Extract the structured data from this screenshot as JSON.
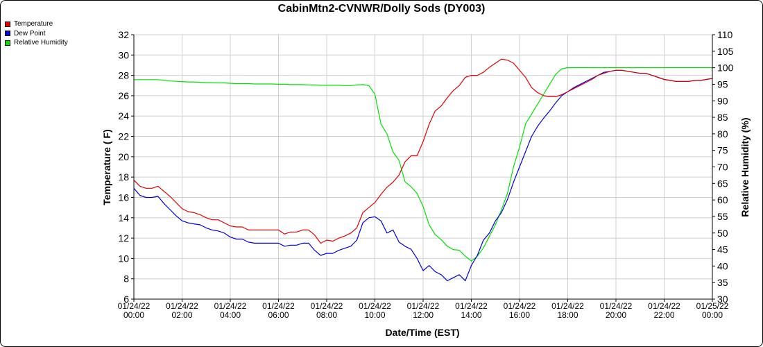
{
  "chart_data": {
    "type": "line",
    "title": "CabinMtn2-CVNWR/Dolly Sods (DY003)",
    "xlabel": "Date/Time (EST)",
    "ylabel": "Temperature ( F)",
    "y2label": "Relative Humidity (%)",
    "ylim": [
      6,
      32
    ],
    "y2lim": [
      30,
      110
    ],
    "yticks": [
      "6",
      "8",
      "10",
      "12",
      "14",
      "16",
      "18",
      "20",
      "22",
      "24",
      "26",
      "28",
      "30",
      "32"
    ],
    "y2ticks": [
      "30",
      "35",
      "40",
      "45",
      "50",
      "55",
      "60",
      "65",
      "70",
      "75",
      "80",
      "85",
      "90",
      "95",
      "100",
      "105",
      "110"
    ],
    "xticks": [
      [
        "01/24/22",
        "00:00"
      ],
      [
        "01/24/22",
        "02:00"
      ],
      [
        "01/24/22",
        "04:00"
      ],
      [
        "01/24/22",
        "06:00"
      ],
      [
        "01/24/22",
        "08:00"
      ],
      [
        "01/24/22",
        "10:00"
      ],
      [
        "01/24/22",
        "12:00"
      ],
      [
        "01/24/22",
        "14:00"
      ],
      [
        "01/24/22",
        "16:00"
      ],
      [
        "01/24/22",
        "18:00"
      ],
      [
        "01/24/22",
        "20:00"
      ],
      [
        "01/24/22",
        "22:00"
      ],
      [
        "01/25/22",
        "00:00"
      ]
    ],
    "x_hours_range": [
      0,
      24
    ],
    "grid": true,
    "legend_position": "top-left",
    "series": [
      {
        "name": "Temperature",
        "axis": "left",
        "color": "#e00000",
        "x_hours": [
          0,
          0.25,
          0.5,
          0.75,
          1,
          1.25,
          1.5,
          1.75,
          2,
          2.25,
          2.5,
          2.75,
          3,
          3.25,
          3.5,
          3.75,
          4,
          4.25,
          4.5,
          4.75,
          5,
          5.25,
          5.5,
          5.75,
          6,
          6.25,
          6.5,
          6.75,
          7,
          7.25,
          7.5,
          7.75,
          8,
          8.25,
          8.5,
          8.75,
          9,
          9.25,
          9.5,
          9.75,
          10,
          10.25,
          10.5,
          10.75,
          11,
          11.25,
          11.5,
          11.75,
          12,
          12.25,
          12.5,
          12.75,
          13,
          13.25,
          13.5,
          13.75,
          14,
          14.25,
          14.5,
          14.75,
          15,
          15.25,
          15.5,
          15.75,
          16,
          16.25,
          16.5,
          16.75,
          17,
          17.25,
          17.5,
          17.75,
          18,
          18.25,
          18.5,
          18.75,
          19,
          19.25,
          19.5,
          19.75,
          20,
          20.25,
          20.5,
          20.75,
          21,
          21.25,
          21.5,
          21.75,
          22,
          22.25,
          22.5,
          22.75,
          23,
          23.25,
          23.5,
          23.75,
          24
        ],
        "values": [
          17.7,
          17.1,
          16.9,
          16.9,
          17.1,
          16.6,
          16.1,
          15.5,
          14.9,
          14.6,
          14.5,
          14.3,
          14.0,
          13.8,
          13.8,
          13.5,
          13.2,
          13.1,
          13.1,
          12.8,
          12.8,
          12.8,
          12.8,
          12.8,
          12.8,
          12.4,
          12.6,
          12.6,
          12.8,
          12.8,
          12.3,
          11.5,
          11.8,
          11.7,
          12.0,
          12.2,
          12.5,
          13.0,
          14.5,
          15.0,
          15.5,
          16.3,
          17.0,
          17.5,
          18.2,
          19.5,
          20.1,
          20.1,
          21.5,
          23.2,
          24.5,
          25.0,
          25.8,
          26.5,
          27.0,
          27.8,
          28.0,
          28.0,
          28.3,
          28.8,
          29.2,
          29.6,
          29.5,
          29.2,
          28.5,
          27.8,
          26.8,
          26.3,
          26.0,
          25.9,
          25.9,
          26.1,
          26.4,
          26.7,
          27.0,
          27.3,
          27.6,
          28.0,
          28.2,
          28.4,
          28.5,
          28.5,
          28.4,
          28.3,
          28.2,
          28.2,
          28.0,
          27.8,
          27.6,
          27.5,
          27.4,
          27.4,
          27.4,
          27.5,
          27.5,
          27.6,
          27.7
        ]
      },
      {
        "name": "Dew Point",
        "axis": "left",
        "color": "#0000dd",
        "x_hours": [
          0,
          0.25,
          0.5,
          0.75,
          1,
          1.25,
          1.5,
          1.75,
          2,
          2.25,
          2.5,
          2.75,
          3,
          3.25,
          3.5,
          3.75,
          4,
          4.25,
          4.5,
          4.75,
          5,
          5.25,
          5.5,
          5.75,
          6,
          6.25,
          6.5,
          6.75,
          7,
          7.25,
          7.5,
          7.75,
          8,
          8.25,
          8.5,
          8.75,
          9,
          9.25,
          9.5,
          9.75,
          10,
          10.25,
          10.5,
          10.75,
          11,
          11.25,
          11.5,
          11.75,
          12,
          12.25,
          12.5,
          12.75,
          13,
          13.25,
          13.5,
          13.75,
          14,
          14.25,
          14.5,
          14.75,
          15,
          15.25,
          15.5,
          15.75,
          16,
          16.25,
          16.5,
          16.75,
          17,
          17.25,
          17.5,
          17.75,
          18,
          18.25,
          18.5,
          18.75,
          19,
          19.25,
          19.5,
          19.75,
          20,
          20.25,
          20.5,
          20.75,
          21,
          21.25,
          21.5,
          21.75,
          22,
          22.25,
          22.5,
          22.75,
          23,
          23.25,
          23.5,
          23.75,
          24
        ],
        "values": [
          16.9,
          16.2,
          16.0,
          16.0,
          16.1,
          15.4,
          14.8,
          14.2,
          13.7,
          13.5,
          13.4,
          13.3,
          13.0,
          12.8,
          12.7,
          12.5,
          12.1,
          11.9,
          11.9,
          11.6,
          11.5,
          11.5,
          11.5,
          11.5,
          11.5,
          11.2,
          11.3,
          11.3,
          11.5,
          11.5,
          10.8,
          10.3,
          10.5,
          10.5,
          10.8,
          11.0,
          11.2,
          11.8,
          13.5,
          14.0,
          14.1,
          13.7,
          12.5,
          12.8,
          11.6,
          11.2,
          10.9,
          10.0,
          8.8,
          9.3,
          8.7,
          8.4,
          7.8,
          8.1,
          8.4,
          7.8,
          9.3,
          10.3,
          11.8,
          12.5,
          13.7,
          14.5,
          15.8,
          17.5,
          19.0,
          20.5,
          22.0,
          23.0,
          23.8,
          24.5,
          25.3,
          26.0,
          26.4,
          26.8,
          27.1,
          27.4,
          27.7,
          28.0,
          28.3,
          28.4,
          28.5,
          28.5,
          28.4,
          28.3,
          28.2,
          28.2,
          28.0,
          27.8,
          27.6,
          27.5,
          27.4,
          27.4,
          27.4,
          27.5,
          27.5,
          27.6,
          27.7
        ]
      },
      {
        "name": "Relative Humidity",
        "axis": "right",
        "color": "#00e000",
        "x_hours": [
          0,
          0.25,
          0.5,
          0.75,
          1,
          1.25,
          1.5,
          1.75,
          2,
          2.25,
          2.5,
          2.75,
          3,
          3.25,
          3.5,
          3.75,
          4,
          4.25,
          4.5,
          4.75,
          5,
          5.25,
          5.5,
          5.75,
          6,
          6.25,
          6.5,
          6.75,
          7,
          7.25,
          7.5,
          7.75,
          8,
          8.25,
          8.5,
          8.75,
          9,
          9.25,
          9.5,
          9.75,
          10,
          10.25,
          10.5,
          10.75,
          11,
          11.25,
          11.5,
          11.75,
          12,
          12.25,
          12.5,
          12.75,
          13,
          13.25,
          13.5,
          13.75,
          14,
          14.25,
          14.5,
          14.75,
          15,
          15.25,
          15.5,
          15.75,
          16,
          16.25,
          16.5,
          16.75,
          17,
          17.25,
          17.5,
          17.75,
          18,
          18.25,
          18.5,
          18.75,
          19,
          19.25,
          19.5,
          19.75,
          20,
          20.25,
          20.5,
          20.75,
          21,
          21.25,
          21.5,
          21.75,
          22,
          22.25,
          22.5,
          22.75,
          23,
          23.25,
          23.5,
          23.75,
          24
        ],
        "values": [
          96.4,
          96.4,
          96.4,
          96.4,
          96.4,
          96.2,
          96.0,
          95.9,
          95.8,
          95.7,
          95.7,
          95.6,
          95.5,
          95.5,
          95.4,
          95.4,
          95.3,
          95.2,
          95.2,
          95.2,
          95.1,
          95.1,
          95.1,
          95.1,
          95.0,
          95.0,
          94.9,
          94.9,
          94.9,
          94.8,
          94.8,
          94.7,
          94.7,
          94.7,
          94.7,
          94.6,
          94.6,
          94.8,
          94.9,
          94.6,
          92.0,
          83.0,
          80.0,
          74.5,
          72.0,
          65.5,
          64.0,
          62.0,
          58.0,
          52.5,
          49.5,
          48.0,
          46.0,
          45.0,
          44.8,
          43.0,
          41.5,
          43.0,
          45.5,
          49.0,
          52.5,
          57.0,
          62.0,
          70.0,
          76.0,
          83.0,
          86.0,
          89.0,
          92.0,
          95.0,
          98.0,
          99.7,
          100.0,
          100.0,
          100.0,
          100.0,
          100.0,
          100.0,
          100.0,
          100.0,
          100.0,
          100.0,
          100.0,
          100.0,
          100.0,
          100.0,
          100.0,
          100.0,
          100.0,
          100.0,
          100.0,
          100.0,
          100.0,
          100.0,
          100.0,
          100.0,
          100.0
        ]
      }
    ]
  },
  "legend": [
    {
      "label": "Temperature",
      "color": "#e00000"
    },
    {
      "label": "Dew Point",
      "color": "#0000dd"
    },
    {
      "label": "Relative Humidity",
      "color": "#00e000"
    }
  ]
}
